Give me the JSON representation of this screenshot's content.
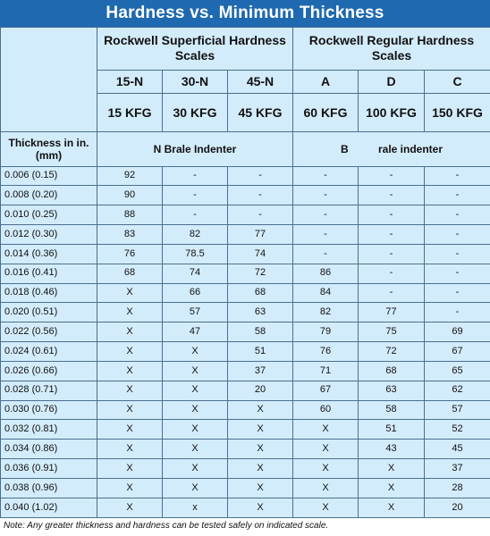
{
  "title": "Hardness vs. Minimum Thickness",
  "header": {
    "superficial_group": "Rockwell Superficial Hardness Scales",
    "regular_group": "Rockwell Regular Hardness Scales",
    "thickness_label": "Thickness in in. (mm)",
    "n_indenter": "N Brale Indenter",
    "b_indenter": "B          rale indenter",
    "scales": [
      {
        "name": "15-N",
        "load": "15 KFG"
      },
      {
        "name": "30-N",
        "load": "30 KFG"
      },
      {
        "name": "45-N",
        "load": "45 KFG"
      },
      {
        "name": "A",
        "load": "60 KFG"
      },
      {
        "name": "D",
        "load": "100 KFG"
      },
      {
        "name": "C",
        "load": "150 KFG"
      }
    ]
  },
  "rows": [
    {
      "thickness": "0.006 (0.15)",
      "values": [
        "92",
        "-",
        "-",
        "-",
        "-",
        "-"
      ]
    },
    {
      "thickness": "0.008 (0.20)",
      "values": [
        "90",
        "-",
        "-",
        "-",
        "-",
        "-"
      ]
    },
    {
      "thickness": "0.010 (0.25)",
      "values": [
        "88",
        "-",
        "-",
        "-",
        "-",
        "-"
      ]
    },
    {
      "thickness": "0.012 (0.30)",
      "values": [
        "83",
        "82",
        "77",
        "-",
        "-",
        "-"
      ]
    },
    {
      "thickness": "0.014 (0.36)",
      "values": [
        "76",
        "78.5",
        "74",
        "-",
        "-",
        "-"
      ]
    },
    {
      "thickness": "0.016 (0.41)",
      "values": [
        "68",
        "74",
        "72",
        "86",
        "-",
        "-"
      ]
    },
    {
      "thickness": "0.018 (0.46)",
      "values": [
        "X",
        "66",
        "68",
        "84",
        "-",
        "-"
      ]
    },
    {
      "thickness": "0.020 (0.51)",
      "values": [
        "X",
        "57",
        "63",
        "82",
        "77",
        "-"
      ]
    },
    {
      "thickness": "0.022 (0.56)",
      "values": [
        "X",
        "47",
        "58",
        "79",
        "75",
        "69"
      ]
    },
    {
      "thickness": "0.024 (0.61)",
      "values": [
        "X",
        "X",
        "51",
        "76",
        "72",
        "67"
      ]
    },
    {
      "thickness": "0.026 (0.66)",
      "values": [
        "X",
        "X",
        "37",
        "71",
        "68",
        "65"
      ]
    },
    {
      "thickness": "0.028 (0.71)",
      "values": [
        "X",
        "X",
        "20",
        "67",
        "63",
        "62"
      ]
    },
    {
      "thickness": "0.030 (0.76)",
      "values": [
        "X",
        "X",
        "X",
        "60",
        "58",
        "57"
      ]
    },
    {
      "thickness": "0.032 (0.81)",
      "values": [
        "X",
        "X",
        "X",
        "X",
        "51",
        "52"
      ]
    },
    {
      "thickness": "0.034 (0.86)",
      "values": [
        "X",
        "X",
        "X",
        "X",
        "43",
        "45"
      ]
    },
    {
      "thickness": "0.036 (0.91)",
      "values": [
        "X",
        "X",
        "X",
        "X",
        "X",
        "37"
      ]
    },
    {
      "thickness": "0.038 (0.96)",
      "values": [
        "X",
        "X",
        "X",
        "X",
        "X",
        "28"
      ]
    },
    {
      "thickness": "0.040 (1.02)",
      "values": [
        "X",
        "x",
        "X",
        "X",
        "X",
        "20"
      ]
    }
  ],
  "note": "Note: Any greater thickness and hardness can be tested safely on indicated scale.",
  "colors": {
    "title_bg": "#1f69b0",
    "table_bg": "#d3ecfb",
    "grid": "#4a6f90"
  }
}
